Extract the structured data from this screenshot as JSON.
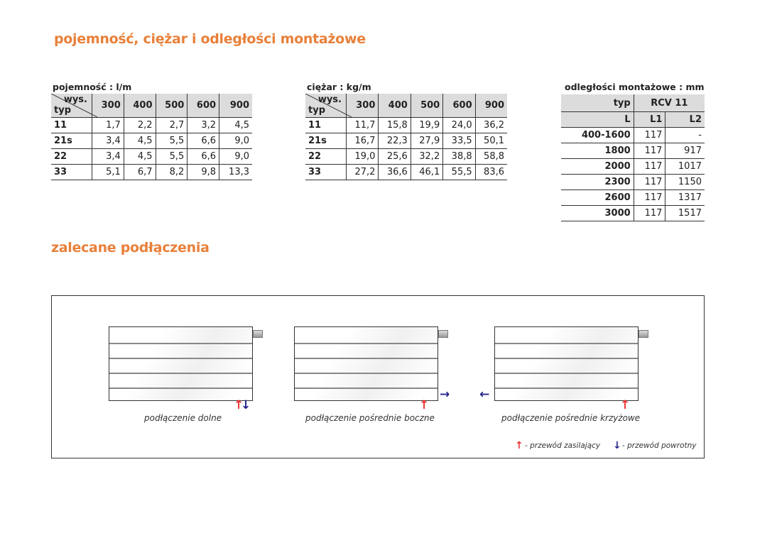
{
  "title1": "pojemność, ciężar i odległości montażowe",
  "title2": "zalecane podłączenia",
  "capacity": {
    "caption": "pojemność : l/m",
    "corner_top": "wys.",
    "corner_bottom": "typ",
    "heights": [
      "300",
      "400",
      "500",
      "600",
      "900"
    ],
    "rows": [
      [
        "11",
        "1,7",
        "2,2",
        "2,7",
        "3,2",
        "4,5"
      ],
      [
        "21s",
        "3,4",
        "4,5",
        "5,5",
        "6,6",
        "9,0"
      ],
      [
        "22",
        "3,4",
        "4,5",
        "5,5",
        "6,6",
        "9,0"
      ],
      [
        "33",
        "5,1",
        "6,7",
        "8,2",
        "9,8",
        "13,3"
      ]
    ]
  },
  "weight": {
    "caption": "ciężar : kg/m",
    "corner_top": "wys.",
    "corner_bottom": "typ",
    "heights": [
      "300",
      "400",
      "500",
      "600",
      "900"
    ],
    "rows": [
      [
        "11",
        "11,7",
        "15,8",
        "19,9",
        "24,0",
        "36,2"
      ],
      [
        "21s",
        "16,7",
        "22,3",
        "27,9",
        "33,5",
        "50,1"
      ],
      [
        "22",
        "19,0",
        "25,6",
        "32,2",
        "38,8",
        "58,8"
      ],
      [
        "33",
        "27,2",
        "36,6",
        "46,1",
        "55,5",
        "83,6"
      ]
    ]
  },
  "distances": {
    "caption": "odległości montażowe : mm",
    "h_typ": "typ",
    "h_model": "RCV 11",
    "h_L": "L",
    "h_L1": "L1",
    "h_L2": "L2",
    "rows": [
      [
        "400-1600",
        "117",
        "-"
      ],
      [
        "1800",
        "117",
        "917"
      ],
      [
        "2000",
        "117",
        "1017"
      ],
      [
        "2300",
        "117",
        "1150"
      ],
      [
        "2600",
        "117",
        "1317"
      ],
      [
        "3000",
        "117",
        "1517"
      ]
    ]
  },
  "connections": [
    {
      "label": "podłączenie dolne"
    },
    {
      "label": "podłączenie pośrednie boczne"
    },
    {
      "label": "podłączenie pośrednie krzyżowe"
    }
  ],
  "legend": {
    "supply": "- przewód zasilający",
    "return": "- przewód powrotny",
    "supply_color": "#e33333",
    "return_color": "#23238a"
  },
  "accent": "#e8803a"
}
